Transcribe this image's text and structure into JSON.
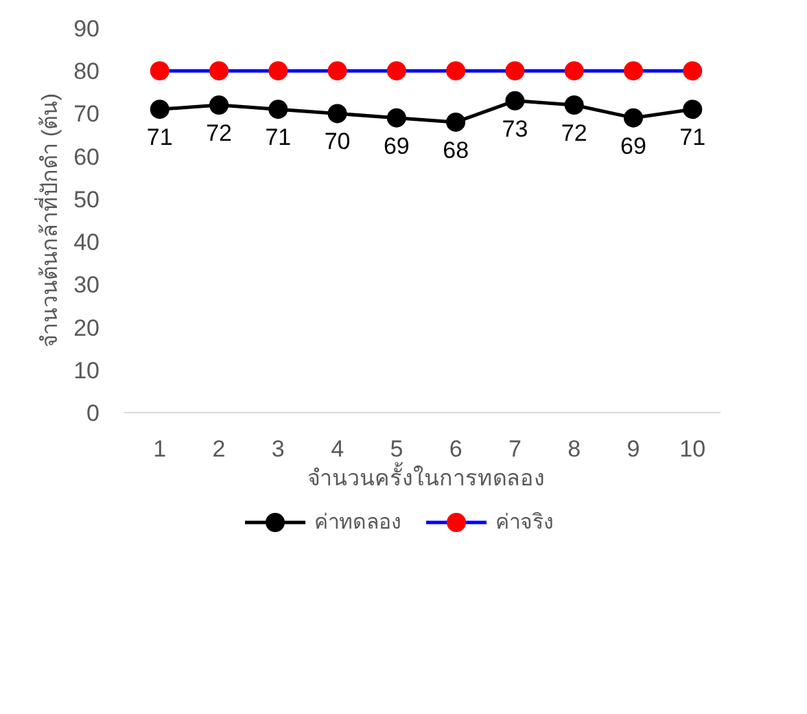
{
  "chart_data": {
    "type": "line",
    "xlabel": "จำนวนครั้งในการทดลอง",
    "ylabel": "จำนวนต้นกล้าที่ปักดำ (ต้น)",
    "categories": [
      "1",
      "2",
      "3",
      "4",
      "5",
      "6",
      "7",
      "8",
      "9",
      "10"
    ],
    "ylim": [
      0,
      90
    ],
    "yticks": [
      0,
      10,
      20,
      30,
      40,
      50,
      60,
      70,
      80,
      90
    ],
    "grid": false,
    "legend": "bottom",
    "marker": "circle",
    "line_style": "solid",
    "series": [
      {
        "name": "ค่าทดลอง",
        "color": "#000000",
        "values": [
          71,
          72,
          71,
          70,
          69,
          68,
          73,
          72,
          69,
          71
        ],
        "value_labels": [
          "71",
          "72",
          "71",
          "70",
          "69",
          "68",
          "73",
          "72",
          "69",
          "71"
        ]
      },
      {
        "name": "ค่าจริง",
        "color": "#0000ff",
        "colors": [
          "#ff0000",
          "#ff0000",
          "#ff0000",
          "#ff0000",
          "#ff0000",
          "#ff0000",
          "#ff0000",
          "#ff0000",
          "#ff0000",
          "#ff0000"
        ],
        "values": [
          80,
          80,
          80,
          80,
          80,
          80,
          80,
          80,
          80,
          80
        ]
      }
    ]
  }
}
